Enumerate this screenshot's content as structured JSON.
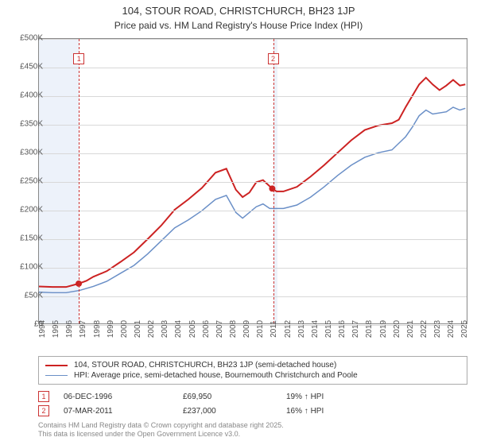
{
  "title": "104, STOUR ROAD, CHRISTCHURCH, BH23 1JP",
  "subtitle": "Price paid vs. HM Land Registry's House Price Index (HPI)",
  "chart": {
    "type": "line",
    "background_color": "#ffffff",
    "grid_color": "#d8d8d8",
    "shade_color": "#edf2fa",
    "x_range": [
      1994,
      2025.5
    ],
    "y_range": [
      0,
      500000
    ],
    "y_ticks": [
      0,
      50000,
      100000,
      150000,
      200000,
      250000,
      300000,
      350000,
      400000,
      450000,
      500000
    ],
    "y_tick_labels": [
      "£0",
      "£50K",
      "£100K",
      "£150K",
      "£200K",
      "£250K",
      "£300K",
      "£350K",
      "£400K",
      "£450K",
      "£500K"
    ],
    "x_ticks": [
      1994,
      1995,
      1996,
      1997,
      1998,
      1999,
      2000,
      2001,
      2002,
      2003,
      2004,
      2005,
      2006,
      2007,
      2008,
      2009,
      2010,
      2011,
      2012,
      2013,
      2014,
      2015,
      2016,
      2017,
      2018,
      2019,
      2020,
      2021,
      2022,
      2023,
      2024,
      2025
    ],
    "shaded_regions": [
      {
        "from": 1994,
        "to": 1996.93
      },
      {
        "from": 2011.18,
        "to": 2011.5
      }
    ],
    "series": [
      {
        "name": "property",
        "label": "104, STOUR ROAD, CHRISTCHURCH, BH23 1JP (semi-detached house)",
        "color": "#cc2222",
        "line_width": 2,
        "data": [
          [
            1994,
            65000
          ],
          [
            1995,
            64000
          ],
          [
            1996,
            64000
          ],
          [
            1996.93,
            69950
          ],
          [
            1997.5,
            75000
          ],
          [
            1998,
            82000
          ],
          [
            1999,
            92000
          ],
          [
            2000,
            108000
          ],
          [
            2001,
            125000
          ],
          [
            2002,
            148000
          ],
          [
            2003,
            172000
          ],
          [
            2004,
            200000
          ],
          [
            2005,
            218000
          ],
          [
            2006,
            238000
          ],
          [
            2007,
            265000
          ],
          [
            2007.8,
            272000
          ],
          [
            2008.5,
            235000
          ],
          [
            2009,
            222000
          ],
          [
            2009.5,
            230000
          ],
          [
            2010,
            248000
          ],
          [
            2010.5,
            252000
          ],
          [
            2011.18,
            237000
          ],
          [
            2011.5,
            232000
          ],
          [
            2012,
            232000
          ],
          [
            2013,
            240000
          ],
          [
            2014,
            258000
          ],
          [
            2015,
            278000
          ],
          [
            2016,
            300000
          ],
          [
            2017,
            322000
          ],
          [
            2018,
            340000
          ],
          [
            2019,
            348000
          ],
          [
            2020,
            352000
          ],
          [
            2020.5,
            358000
          ],
          [
            2021,
            380000
          ],
          [
            2021.5,
            400000
          ],
          [
            2022,
            420000
          ],
          [
            2022.5,
            432000
          ],
          [
            2023,
            420000
          ],
          [
            2023.5,
            410000
          ],
          [
            2024,
            418000
          ],
          [
            2024.5,
            428000
          ],
          [
            2025,
            418000
          ],
          [
            2025.4,
            420000
          ]
        ]
      },
      {
        "name": "hpi",
        "label": "HPI: Average price, semi-detached house, Bournemouth Christchurch and Poole",
        "color": "#6a8fc7",
        "line_width": 1.5,
        "data": [
          [
            1994,
            55000
          ],
          [
            1995,
            54000
          ],
          [
            1996,
            54000
          ],
          [
            1997,
            58000
          ],
          [
            1998,
            65000
          ],
          [
            1999,
            74000
          ],
          [
            2000,
            88000
          ],
          [
            2001,
            102000
          ],
          [
            2002,
            122000
          ],
          [
            2003,
            145000
          ],
          [
            2004,
            168000
          ],
          [
            2005,
            182000
          ],
          [
            2006,
            198000
          ],
          [
            2007,
            218000
          ],
          [
            2007.8,
            225000
          ],
          [
            2008.5,
            195000
          ],
          [
            2009,
            185000
          ],
          [
            2010,
            205000
          ],
          [
            2010.5,
            210000
          ],
          [
            2011,
            202000
          ],
          [
            2012,
            202000
          ],
          [
            2013,
            208000
          ],
          [
            2014,
            222000
          ],
          [
            2015,
            240000
          ],
          [
            2016,
            260000
          ],
          [
            2017,
            278000
          ],
          [
            2018,
            292000
          ],
          [
            2019,
            300000
          ],
          [
            2020,
            305000
          ],
          [
            2021,
            328000
          ],
          [
            2021.5,
            345000
          ],
          [
            2022,
            365000
          ],
          [
            2022.5,
            375000
          ],
          [
            2023,
            368000
          ],
          [
            2024,
            372000
          ],
          [
            2024.5,
            380000
          ],
          [
            2025,
            375000
          ],
          [
            2025.4,
            378000
          ]
        ]
      }
    ],
    "event_markers": [
      {
        "n": "1",
        "x": 1996.93,
        "y": 69950,
        "marker_top_y": 475000,
        "point_color": "#cc2222"
      },
      {
        "n": "2",
        "x": 2011.18,
        "y": 237000,
        "marker_top_y": 475000,
        "point_color": "#cc2222"
      }
    ]
  },
  "legend": {
    "items": [
      {
        "color": "#cc2222",
        "width": 2,
        "label": "104, STOUR ROAD, CHRISTCHURCH, BH23 1JP (semi-detached house)"
      },
      {
        "color": "#6a8fc7",
        "width": 1.5,
        "label": "HPI: Average price, semi-detached house, Bournemouth Christchurch and Poole"
      }
    ]
  },
  "events": [
    {
      "n": "1",
      "date": "06-DEC-1996",
      "price": "£69,950",
      "delta": "19% ↑ HPI"
    },
    {
      "n": "2",
      "date": "07-MAR-2011",
      "price": "£237,000",
      "delta": "16% ↑ HPI"
    }
  ],
  "footer_line1": "Contains HM Land Registry data © Crown copyright and database right 2025.",
  "footer_line2": "This data is licensed under the Open Government Licence v3.0."
}
